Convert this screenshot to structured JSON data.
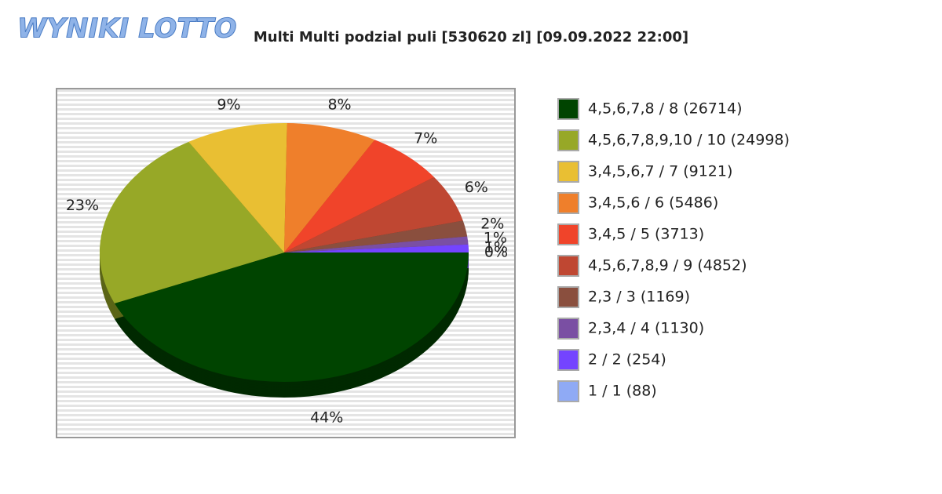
{
  "logo": "WYNIKI LOTTO",
  "chart_data": {
    "type": "pie",
    "title": "Multi Multi podzial puli [530620 zl] [09.09.2022 22:00]",
    "categories": [
      "4,5,6,7,8 / 8 (26714)",
      "4,5,6,7,8,9,10 / 10 (24998)",
      "3,4,5,6,7 / 7 (9121)",
      "3,4,5,6 / 6 (5486)",
      "3,4,5 / 5 (3713)",
      "4,5,6,7,8,9 / 9 (4852)",
      "2,3 / 3 (1169)",
      "2,3,4 / 4 (1130)",
      "2 / 2 (254)",
      "1 / 1 (88)"
    ],
    "values": [
      44,
      23,
      9,
      8,
      7,
      6,
      2,
      1,
      1,
      0
    ],
    "value_labels": [
      "44%",
      "23%",
      "9%",
      "8%",
      "7%",
      "6%",
      "2%",
      "1%",
      "1%",
      "0%"
    ],
    "colors": [
      "#004400",
      "#97a827",
      "#e9bf33",
      "#ef7f2b",
      "#f0442a",
      "#bf4732",
      "#8a4f3e",
      "#7a4fa3",
      "#7444ff",
      "#8faaf5"
    ]
  }
}
